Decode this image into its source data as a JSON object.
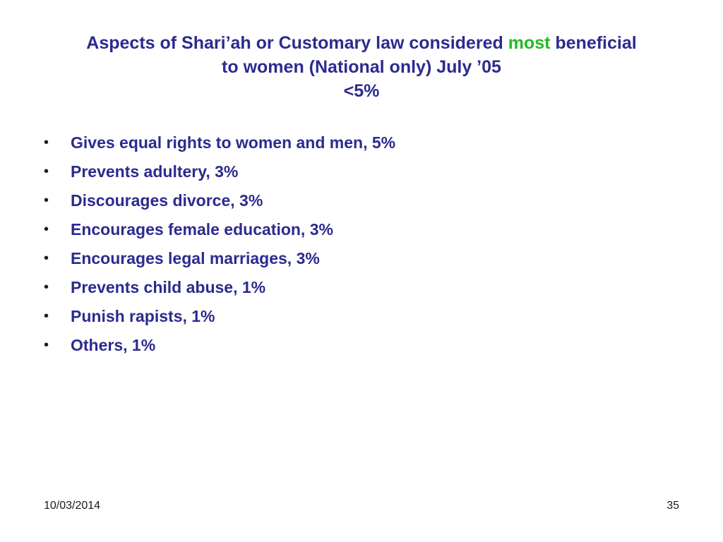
{
  "title": {
    "line1_before": "Aspects of Shari’ah or Customary law considered ",
    "line1_highlight": "most",
    "line1_after": " beneficial",
    "line2": "to women (National only) July ’05",
    "line3": "<5%"
  },
  "colors": {
    "text": "#2b2b8f",
    "highlight": "#22bb22",
    "background": "#ffffff"
  },
  "bullets": [
    {
      "marker": "•",
      "text": "Gives equal rights to women and men, 5%"
    },
    {
      "marker": "•",
      "text": "Prevents adultery, 3%"
    },
    {
      "marker": "•",
      "text": "Discourages divorce, 3%"
    },
    {
      "marker": "•",
      "text": "Encourages female education, 3%"
    },
    {
      "marker": "•",
      "text": "Encourages legal marriages, 3%"
    },
    {
      "marker": "•",
      "text": "Prevents child abuse, 1%"
    },
    {
      "marker": "•",
      "text": "Punish rapists, 1%"
    },
    {
      "marker": "•",
      "text": "Others, 1%"
    }
  ],
  "footer": {
    "date": "10/03/2014",
    "page_number": "35"
  }
}
